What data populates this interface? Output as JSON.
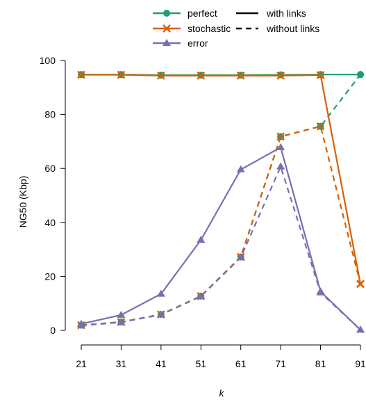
{
  "chart_data": {
    "type": "line",
    "xlabel": "k",
    "ylabel": "NG50 (Kbp)",
    "x": [
      21,
      31,
      41,
      51,
      61,
      71,
      81,
      91
    ],
    "xlim": [
      21,
      91
    ],
    "ylim": [
      0,
      100
    ],
    "yticks": [
      0,
      20,
      40,
      60,
      80,
      100
    ],
    "grid": false,
    "legend_placement": "top",
    "legend": {
      "series_entries": [
        "perfect",
        "stochastic",
        "error"
      ],
      "style_entries": [
        "with links",
        "without links"
      ]
    },
    "series": [
      {
        "name": "perfect",
        "marker": "circle",
        "color": "#1b9e77",
        "with_links": [
          94.8,
          94.8,
          94.6,
          94.6,
          94.6,
          94.7,
          94.8,
          94.8
        ],
        "without_links": [
          1.9,
          3.1,
          5.9,
          12.7,
          27.2,
          71.8,
          75.6,
          94.8
        ]
      },
      {
        "name": "stochastic",
        "marker": "x",
        "color": "#d95f02",
        "with_links": [
          94.7,
          94.7,
          94.4,
          94.4,
          94.4,
          94.4,
          94.6,
          17.2
        ],
        "without_links": [
          1.9,
          3.1,
          5.9,
          12.7,
          27.2,
          71.8,
          75.6,
          17.2
        ]
      },
      {
        "name": "error",
        "marker": "triangle",
        "color": "#7570b3",
        "with_links": [
          2.4,
          5.7,
          13.5,
          33.5,
          59.6,
          67.8,
          14.4,
          0.2
        ],
        "without_links": [
          1.8,
          3.0,
          5.8,
          12.6,
          27.0,
          60.7,
          14.0,
          0.2
        ]
      }
    ]
  }
}
